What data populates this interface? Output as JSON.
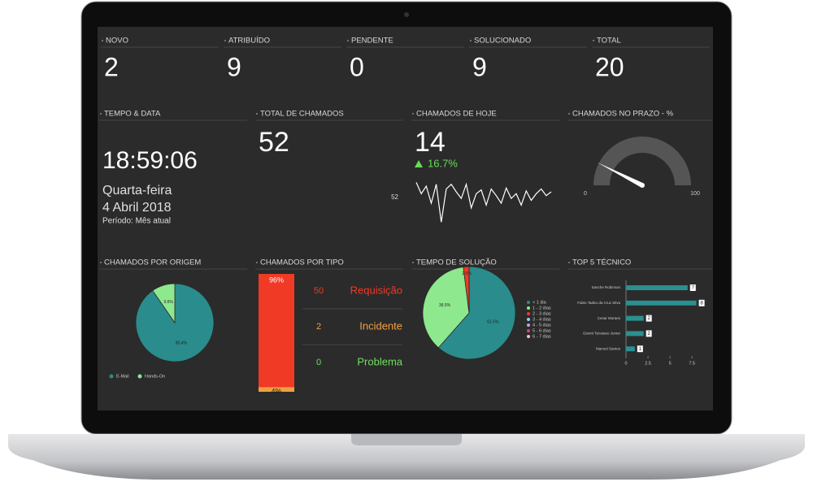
{
  "kpis": [
    {
      "label": "NOVO",
      "value": 2
    },
    {
      "label": "ATRIBUÍDO",
      "value": 9
    },
    {
      "label": "PENDENTE",
      "value": 0
    },
    {
      "label": "SOLUCIONADO",
      "value": 9
    },
    {
      "label": "TOTAL",
      "value": 20
    }
  ],
  "time_panel": {
    "title": "TEMPO & DATA",
    "time": "18:59:06",
    "weekday": "Quarta-feira",
    "date": "4 Abril 2018",
    "period": "Período: Mês atual"
  },
  "total_panel": {
    "title": "TOTAL DE CHAMADOS",
    "value": 52
  },
  "today_panel": {
    "title": "CHAMADOS DE HOJE",
    "value": 14,
    "change": "16.7%",
    "chart_data": {
      "type": "line",
      "label": 52,
      "values": [
        52,
        40,
        48,
        30,
        50,
        10,
        45,
        50,
        42,
        35,
        50,
        25,
        40,
        44,
        28,
        45,
        38,
        30,
        46,
        35,
        40,
        28,
        43,
        33,
        40,
        45,
        38,
        42
      ],
      "ylim": [
        0,
        60
      ],
      "color": "#ffffff"
    }
  },
  "gauge_panel": {
    "title": "CHAMADOS NO PRAZO - %",
    "chart_data": {
      "type": "gauge",
      "min": 0,
      "max": 100,
      "value": 15,
      "color": "#555555"
    }
  },
  "origin_panel": {
    "title": "CHAMADOS POR ORIGEM",
    "chart_data": {
      "type": "pie",
      "categories": [
        "E-Mail",
        "Hands-On"
      ],
      "values": [
        90.4,
        9.6
      ],
      "value_labels": [
        "90.4%",
        "9.6%"
      ],
      "colors": [
        "#2a8c8c",
        "#8ee88e"
      ]
    }
  },
  "type_panel": {
    "title": "CHAMADOS POR TIPO",
    "chart_data": {
      "type": "stacked-bar",
      "values": [
        96,
        4
      ],
      "value_labels": [
        "96%",
        "4%"
      ],
      "colors": [
        "#f03a25",
        "#f0a040"
      ]
    },
    "items": [
      {
        "count": 50,
        "name": "Requisição",
        "color": "#f03a25"
      },
      {
        "count": 2,
        "name": "Incidente",
        "color": "#f0a040"
      },
      {
        "count": 0,
        "name": "Problema",
        "color": "#6ee060"
      }
    ]
  },
  "solution_panel": {
    "title": "TEMPO DE SOLUÇÃO",
    "chart_data": {
      "type": "pie",
      "categories": [
        "< 1 dia",
        "1 - 2 dias",
        "2 - 3 dias",
        "3 - 4 dias",
        "4 - 5 dias",
        "5 - 6 dias",
        "6 - 7 dias"
      ],
      "values": [
        61.5,
        36.5,
        2,
        0,
        0,
        0,
        0
      ],
      "value_labels": [
        "61.5%",
        "36.5%",
        "2.0%",
        null,
        null,
        null,
        null
      ],
      "colors": [
        "#2a8c8c",
        "#8ee88e",
        "#f03a25",
        "#a0c8f0",
        "#c0a0e0",
        "#e04080",
        "#f0c0e0"
      ]
    }
  },
  "tech_panel": {
    "title": "TOP 5 TÉCNICO",
    "chart_data": {
      "type": "hbar",
      "categories": [
        "Sanche Robinson",
        "Fabio Tadeu da Cruz Silva",
        "Cesar Moraes",
        "Gionni Tenuiano Junior",
        "Manoel Santos"
      ],
      "values": [
        7,
        8,
        2,
        2,
        1
      ],
      "xlim": [
        0,
        8.5
      ],
      "xticks": [
        0,
        2.5,
        5,
        7.5
      ],
      "color": "#2a9090"
    }
  }
}
